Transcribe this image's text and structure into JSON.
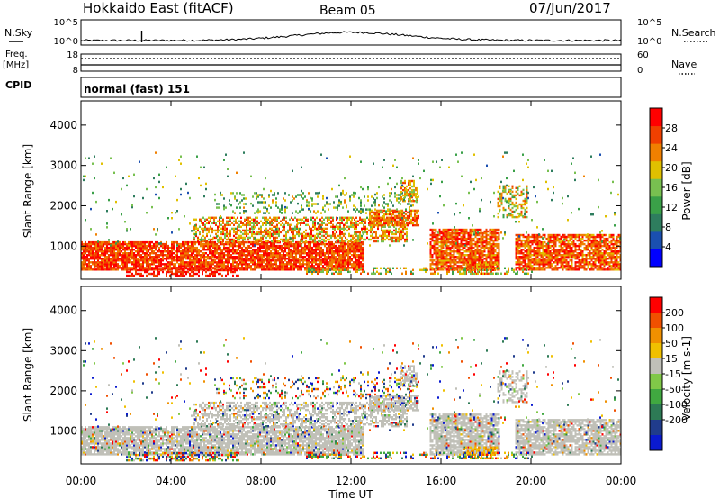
{
  "header": {
    "station": "Hokkaido East (fitACF)",
    "beam": "Beam 05",
    "date": "07/Jun/2017"
  },
  "top_panels": {
    "nsky_label": "N.Sky",
    "nsearch_label": "N.Search",
    "noise_ticks": [
      "10^5",
      "10^0"
    ],
    "freq_label_1": "Freq.",
    "freq_label_2": "[MHz]",
    "freq_ticks": [
      "18",
      "8"
    ],
    "nave_label": "Nave",
    "nave_ticks": [
      "60",
      "0"
    ],
    "cpid_label": "CPID",
    "cpid_value": "normal (fast) 151"
  },
  "axes": {
    "ylabel": "Slant Range [km]",
    "yticks": [
      "4000",
      "3000",
      "2000",
      "1000"
    ],
    "xticks": [
      "00:00",
      "04:00",
      "08:00",
      "12:00",
      "16:00",
      "20:00",
      "00:00"
    ],
    "xlabel": "Time UT"
  },
  "chart_data": [
    {
      "type": "heatmap",
      "name": "power",
      "x_range_hours": [
        0,
        24
      ],
      "y_range_km": [
        180,
        4600
      ],
      "colorbar_label": "Power [dB]",
      "colorbar_ticks": [
        "28",
        "24",
        "20",
        "16",
        "12",
        "8",
        "4"
      ],
      "colorbar_range": [
        0,
        32
      ],
      "colors": [
        "#0000ff",
        "#1a4fb0",
        "#2e7d5e",
        "#3aa048",
        "#78c050",
        "#e0c000",
        "#f08000",
        "#f04000",
        "#ff0000"
      ]
    },
    {
      "type": "heatmap",
      "name": "velocity",
      "x_range_hours": [
        0,
        24
      ],
      "y_range_km": [
        180,
        4600
      ],
      "colorbar_label": "Velocity [m s-1]",
      "colorbar_ticks": [
        "200",
        "100",
        "50",
        "15",
        "-15",
        "-50",
        "-100",
        "-200"
      ],
      "ground_scatter_color": "#c0c0b8",
      "colors": [
        "#0a1ad0",
        "#203c8c",
        "#2d7a55",
        "#40a840",
        "#80c848",
        "#c0c0b8",
        "#f0c000",
        "#f09000",
        "#f05000",
        "#ff0000"
      ]
    }
  ]
}
